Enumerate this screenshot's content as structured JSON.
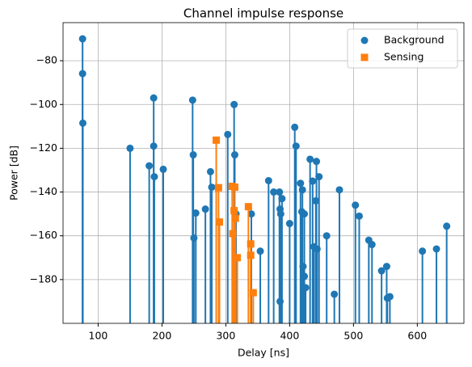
{
  "chart_data": {
    "type": "stem",
    "title": "Channel impulse response",
    "x_label": "Delay [ns]",
    "y_label": "Power [dB]",
    "xlim": [
      45,
      673
    ],
    "ylim": [
      -200,
      -62.6
    ],
    "xticks": [
      100,
      200,
      300,
      400,
      500,
      600
    ],
    "yticks": [
      {
        "value": -180,
        "label": "−180"
      },
      {
        "value": -160,
        "label": "−160"
      },
      {
        "value": -140,
        "label": "−140"
      },
      {
        "value": -120,
        "label": "−120"
      },
      {
        "value": -100,
        "label": "−100"
      },
      {
        "value": -80,
        "label": "−80"
      }
    ],
    "grid": true,
    "legend": "upper right",
    "series": [
      {
        "name": "Background",
        "color": "#1f77b4",
        "marker": "circle",
        "x": [
          75.6,
          75.6,
          76,
          150,
          180,
          187,
          187,
          188,
          202,
          248,
          249,
          250,
          253,
          268,
          276,
          278,
          303,
          313,
          314,
          316,
          340,
          354,
          367,
          375,
          384,
          385,
          386,
          388,
          385,
          400,
          408,
          410,
          417,
          419,
          420,
          421,
          423,
          423,
          425,
          432,
          436,
          438,
          441,
          442,
          443,
          446,
          458,
          470,
          478,
          503,
          509,
          524,
          529,
          544,
          552,
          553,
          557,
          608,
          630,
          646
        ],
        "values": [
          -70,
          -85.9,
          -108.5,
          -120,
          -128,
          -97,
          -119,
          -133,
          -129.6,
          -98,
          -123,
          -161,
          -149.6,
          -147.8,
          -130.7,
          -137.8,
          -113.7,
          -100,
          -123,
          -150,
          -150,
          -167,
          -134.8,
          -140,
          -140,
          -147.8,
          -150,
          -143,
          -190,
          -154.4,
          -110.4,
          -119,
          -136,
          -149,
          -139,
          -174,
          -178.5,
          -150,
          -183.7,
          -125,
          -135,
          -165,
          -144,
          -126,
          -166,
          -133,
          -160,
          -186.7,
          -139,
          -146,
          -151,
          -162,
          -164,
          -176,
          -174,
          -188.5,
          -187.8,
          -167,
          -166,
          -155.6
        ]
      },
      {
        "name": "Sensing",
        "color": "#ff7f0e",
        "marker": "square",
        "x": [
          285,
          288.6,
          290,
          310,
          313,
          314,
          311,
          315,
          318,
          335.4,
          339,
          339,
          343
        ],
        "values": [
          -116.3,
          -138,
          -153.7,
          -137.4,
          -148.5,
          -137.8,
          -159,
          -152,
          -170,
          -146.7,
          -163.7,
          -168.9,
          -186
        ]
      }
    ]
  }
}
